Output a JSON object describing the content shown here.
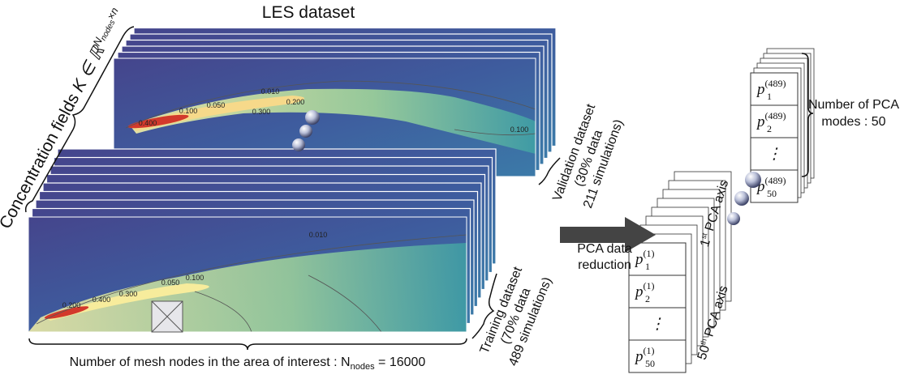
{
  "title": "LES dataset",
  "concentration_label": {
    "text": "Concentration fields ",
    "symbol": "K ∈ ℝ",
    "sup": "N",
    "sup_sub": "nodes",
    "sup_tail": "×n"
  },
  "validation": {
    "contours": [
      "0.400",
      "0.100",
      "0.050",
      "0.010",
      "0.200",
      "0.300",
      "0.100"
    ],
    "label": [
      "Validation dataset",
      "(30% data",
      "211 simulations)"
    ]
  },
  "training": {
    "contours": [
      "0.010",
      "0.200",
      "0.400",
      "0.300",
      "0.050",
      "0.100"
    ],
    "label": [
      "Training dataset",
      "(70% data",
      "489 simulations)"
    ]
  },
  "mesh_label": {
    "text": "Number of mesh nodes in the area of interest : N",
    "sub": "nodes",
    "tail": " = 16000"
  },
  "arrow_label": [
    "PCA data",
    "reduction"
  ],
  "first_vector": {
    "axis_top": {
      "num": "1",
      "sup": "st",
      "text": " PCA axis"
    },
    "axis_bottom": {
      "num": "50",
      "sup": "th",
      "text": " PCA axis"
    },
    "cells": [
      {
        "base": "p",
        "sub": "1",
        "sup": "(1)"
      },
      {
        "base": "p",
        "sub": "2",
        "sup": "(1)"
      },
      {
        "base": "⋮"
      },
      {
        "base": "p",
        "sub": "50",
        "sup": "(1)"
      }
    ]
  },
  "last_vector": {
    "cells": [
      {
        "base": "p",
        "sub": "1",
        "sup": "(489)"
      },
      {
        "base": "p",
        "sub": "2",
        "sup": "(489)"
      },
      {
        "base": "⋮"
      },
      {
        "base": "p",
        "sub": "50",
        "sup": "(489)"
      }
    ]
  },
  "modes_label": [
    "Number of PCA",
    "modes : 50"
  ]
}
